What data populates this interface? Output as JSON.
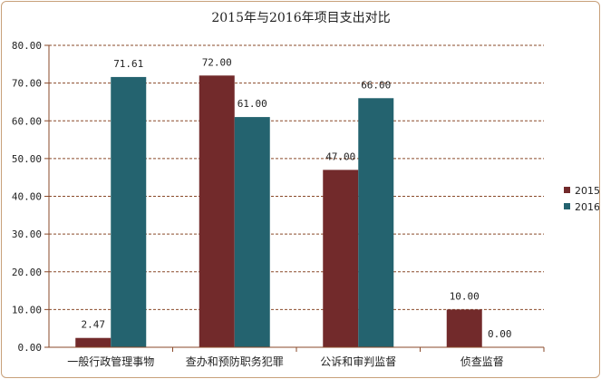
{
  "chart_data": {
    "type": "bar",
    "title": "2015年与2016年项目支出对比",
    "categories": [
      "一般行政管理事物",
      "查办和预防职务犯罪",
      "公诉和审判监督",
      "侦查监督"
    ],
    "series": [
      {
        "name": "2015",
        "values": [
          2.47,
          72.0,
          47.0,
          10.0
        ],
        "labels": [
          "2.47",
          "72.00",
          "47.00",
          "10.00"
        ],
        "color": "#722a2b"
      },
      {
        "name": "2016",
        "values": [
          71.61,
          61.0,
          66.0,
          0.0
        ],
        "labels": [
          "71.61",
          "61.00",
          "66.00",
          "0.00"
        ],
        "color": "#24636f"
      }
    ],
    "ylim": [
      0,
      80
    ],
    "yticks": [
      "0.00",
      "10.00",
      "20.00",
      "30.00",
      "40.00",
      "50.00",
      "60.00",
      "70.00",
      "80.00"
    ],
    "gridlines": "horizontal dashed",
    "legend_position": "right",
    "colors": {
      "grid": "#8a4a2a",
      "border": "#c8a07a",
      "axis": "#8a4a2a"
    }
  }
}
